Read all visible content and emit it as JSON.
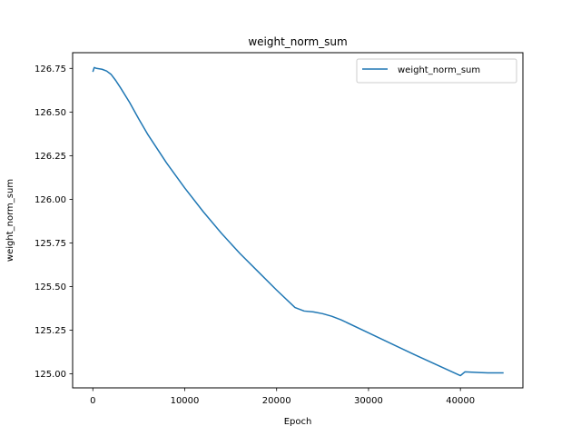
{
  "chart_data": {
    "type": "line",
    "title": "weight_norm_sum",
    "xlabel": "Epoch",
    "ylabel": "weight_norm_sum",
    "xlim": [
      -2200,
      46800
    ],
    "ylim": [
      124.92,
      126.84
    ],
    "xticks": [
      0,
      10000,
      20000,
      30000,
      40000
    ],
    "xtick_labels": [
      "0",
      "10000",
      "20000",
      "30000",
      "40000"
    ],
    "yticks": [
      125.0,
      125.25,
      125.5,
      125.75,
      126.0,
      126.25,
      126.5,
      126.75
    ],
    "ytick_labels": [
      "125.00",
      "125.25",
      "125.50",
      "125.75",
      "126.00",
      "126.25",
      "126.50",
      "126.75"
    ],
    "grid": false,
    "legend_position": "top-right",
    "series": [
      {
        "name": "weight_norm_sum",
        "color": "#1f77b4",
        "x": [
          0,
          150,
          400,
          1000,
          1500,
          2000,
          2500,
          3000,
          4000,
          5000,
          6000,
          7000,
          8000,
          10000,
          12000,
          14000,
          16000,
          18000,
          20000,
          22000,
          23000,
          24000,
          25000,
          26000,
          27000,
          30000,
          35000,
          40000,
          40500,
          42000,
          43000,
          44700
        ],
        "y": [
          126.73,
          126.755,
          126.75,
          126.745,
          126.735,
          126.715,
          126.68,
          126.64,
          126.555,
          126.46,
          126.37,
          126.29,
          126.21,
          126.065,
          125.93,
          125.805,
          125.69,
          125.585,
          125.48,
          125.38,
          125.36,
          125.355,
          125.345,
          125.33,
          125.31,
          125.235,
          125.11,
          124.99,
          125.012,
          125.008,
          125.006,
          125.006
        ]
      }
    ]
  }
}
